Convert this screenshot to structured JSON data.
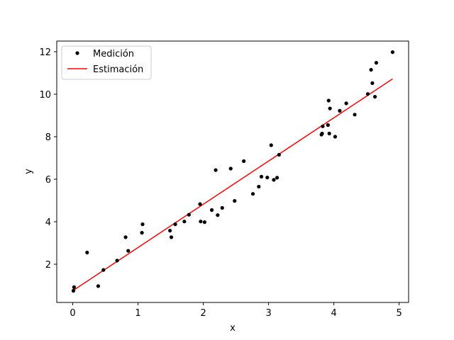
{
  "chart_data": {
    "type": "scatter",
    "xlabel": "x",
    "ylabel": "y",
    "xlim": [
      -0.245,
      5.145
    ],
    "ylim": [
      0.2,
      12.5
    ],
    "xticks": [
      0,
      1,
      2,
      3,
      4,
      5
    ],
    "yticks": [
      2,
      4,
      6,
      8,
      10,
      12
    ],
    "grid": false,
    "legend_position": "top-left",
    "series": [
      {
        "name": "Medición",
        "kind": "scatter",
        "color": "#000000",
        "x": [
          0.01,
          0.02,
          0.22,
          0.39,
          0.47,
          0.68,
          0.81,
          0.85,
          1.06,
          1.07,
          1.49,
          1.51,
          1.57,
          1.71,
          1.78,
          1.95,
          1.96,
          2.02,
          2.13,
          2.19,
          2.22,
          2.29,
          2.42,
          2.48,
          2.62,
          2.76,
          2.85,
          2.89,
          2.98,
          3.04,
          3.08,
          3.13,
          3.16,
          3.81,
          3.82,
          3.83,
          3.91,
          3.92,
          3.93,
          3.94,
          4.02,
          4.09,
          4.19,
          4.32,
          4.52,
          4.57,
          4.59,
          4.63,
          4.65,
          4.9
        ],
        "y": [
          0.75,
          0.92,
          2.55,
          0.97,
          1.73,
          2.17,
          3.27,
          2.63,
          3.48,
          3.88,
          3.58,
          3.27,
          3.88,
          4.01,
          4.33,
          4.83,
          4.01,
          3.98,
          4.55,
          6.43,
          4.31,
          4.65,
          6.5,
          4.98,
          6.85,
          5.31,
          5.65,
          6.12,
          6.08,
          7.6,
          5.97,
          6.07,
          7.15,
          8.1,
          8.15,
          8.49,
          8.55,
          9.7,
          8.15,
          9.33,
          8.0,
          9.22,
          9.57,
          9.04,
          10.01,
          11.15,
          10.52,
          9.88,
          11.48,
          11.98
        ]
      },
      {
        "name": "Estimación",
        "kind": "line",
        "color": "#ff0000",
        "x": [
          0.0,
          4.9
        ],
        "y": [
          0.75,
          10.72
        ]
      }
    ]
  }
}
